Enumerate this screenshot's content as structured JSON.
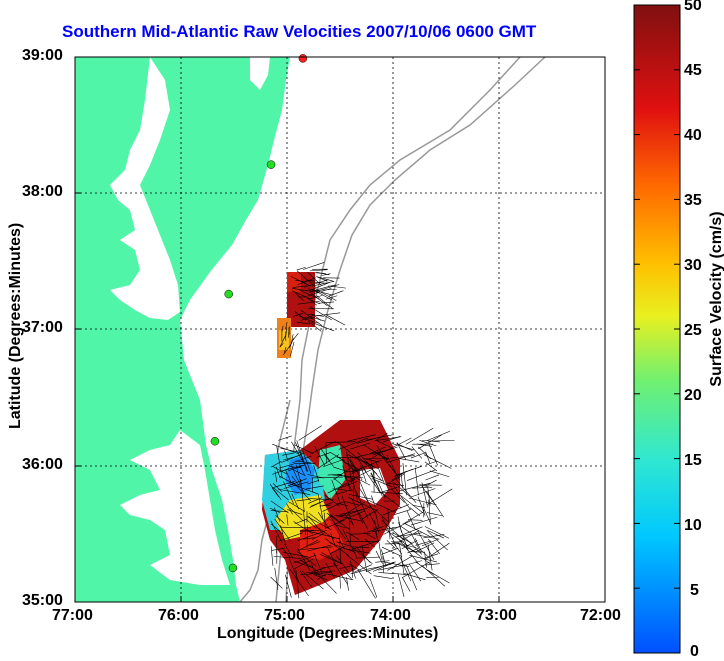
{
  "title": "Southern Mid-Atlantic Raw Velocities 2007/10/06 0600 GMT",
  "xlabel": "Longitude (Degrees:Minutes)",
  "ylabel": "Latitude (Degrees:Minutes)",
  "colorbar": {
    "label": "Surface Velocity (cm/s)",
    "min": 0,
    "max": 50,
    "ticks": [
      "0",
      "5",
      "10",
      "15",
      "20",
      "25",
      "30",
      "35",
      "40",
      "45",
      "50"
    ]
  },
  "x_ticks": [
    "77:00",
    "76:00",
    "75:00",
    "74:00",
    "73:00",
    "72:00"
  ],
  "y_ticks": [
    "39:00",
    "38:00",
    "37:00",
    "36:00",
    "35:00"
  ],
  "colors": {
    "land": "#50f5a8",
    "title": "#0000ff",
    "station": "#22dd22",
    "station_north": "#ff2020",
    "bathymetry": "#999999",
    "grid": "#000000"
  },
  "map_extent": {
    "lon_min": -77.0,
    "lon_max": -72.0,
    "lat_min": 35.0,
    "lat_max": 39.0
  },
  "stations": [
    {
      "lon": -74.85,
      "lat": 38.99,
      "type": "north"
    },
    {
      "lon": -75.15,
      "lat": 38.21
    },
    {
      "lon": -75.55,
      "lat": 37.26
    },
    {
      "lon": -75.68,
      "lat": 36.18
    },
    {
      "lon": -75.51,
      "lat": 35.25
    }
  ]
}
